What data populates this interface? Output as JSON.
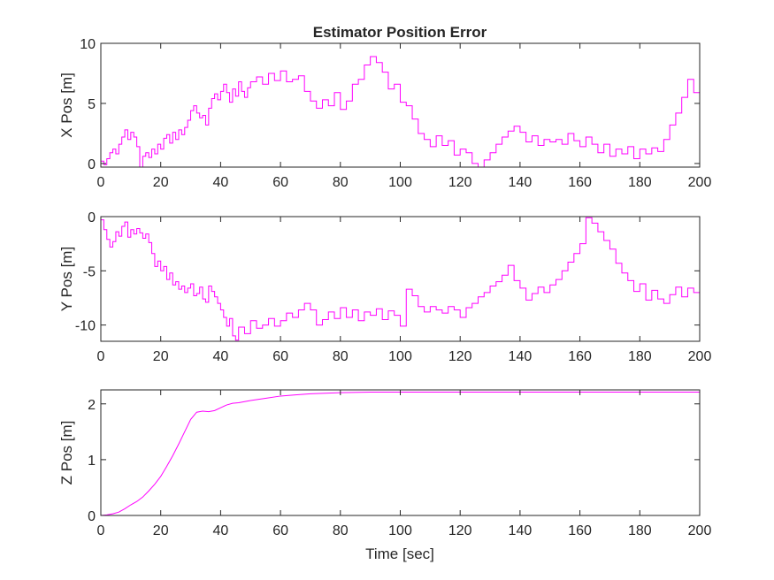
{
  "figure": {
    "title": "Estimator Position Error",
    "xlabel": "Time [sec]",
    "line_color": "#ff00ff"
  },
  "chart_data": [
    {
      "type": "line",
      "ylabel": "X Pos [m]",
      "xlim": [
        0,
        200
      ],
      "ylim": [
        -0.3,
        10
      ],
      "xticks": [
        0,
        20,
        40,
        60,
        80,
        100,
        120,
        140,
        160,
        180,
        200
      ],
      "yticks": [
        0,
        5,
        10
      ],
      "step": true,
      "series": [
        {
          "x": [
            0,
            1,
            2,
            3,
            4,
            5,
            6,
            7,
            8,
            9,
            10,
            11,
            12,
            13,
            14,
            15,
            16,
            17,
            18,
            19,
            20,
            21,
            22,
            23,
            24,
            25,
            26,
            27,
            28,
            29,
            30,
            31,
            32,
            33,
            34,
            35,
            36,
            37,
            38,
            39,
            40,
            41,
            42,
            43,
            44,
            45,
            46,
            47,
            48,
            49,
            50,
            52,
            54,
            56,
            58,
            60,
            62,
            64,
            66,
            68,
            70,
            72,
            74,
            76,
            78,
            80,
            82,
            84,
            86,
            88,
            90,
            92,
            94,
            96,
            98,
            100,
            102,
            104,
            106,
            108,
            110,
            112,
            114,
            116,
            118,
            120,
            122,
            124,
            126,
            128,
            130,
            132,
            134,
            136,
            138,
            140,
            142,
            144,
            146,
            148,
            150,
            152,
            154,
            156,
            158,
            160,
            162,
            164,
            166,
            168,
            170,
            172,
            174,
            176,
            178,
            180,
            182,
            184,
            186,
            188,
            190,
            192,
            194,
            196,
            198,
            200
          ],
          "y": [
            0.2,
            -0.1,
            0.4,
            0.9,
            1.2,
            0.8,
            1.6,
            2.2,
            2.8,
            2.0,
            2.6,
            2.2,
            1.4,
            -0.3,
            0.6,
            0.9,
            0.5,
            1.2,
            0.8,
            1.6,
            1.2,
            2.1,
            2.4,
            1.7,
            2.6,
            2.0,
            2.8,
            2.4,
            3.0,
            3.6,
            4.4,
            4.8,
            4.2,
            3.8,
            4.0,
            3.2,
            4.6,
            5.4,
            5.8,
            5.3,
            6.0,
            6.6,
            5.9,
            5.1,
            6.2,
            5.6,
            6.8,
            6.0,
            5.5,
            6.3,
            6.8,
            7.2,
            6.6,
            7.5,
            6.9,
            7.7,
            6.8,
            7.0,
            7.3,
            6.0,
            5.2,
            4.6,
            5.3,
            4.8,
            5.9,
            4.5,
            5.2,
            6.6,
            7.0,
            8.2,
            8.9,
            8.4,
            7.6,
            6.2,
            6.6,
            5.1,
            4.8,
            3.7,
            2.5,
            2.0,
            1.4,
            2.3,
            1.5,
            1.9,
            0.7,
            1.2,
            0.9,
            0.0,
            -0.3,
            0.3,
            0.9,
            1.6,
            2.2,
            2.7,
            3.1,
            2.6,
            1.8,
            2.3,
            1.5,
            2.0,
            1.8,
            2.0,
            1.6,
            2.5,
            1.9,
            1.4,
            2.2,
            1.6,
            0.9,
            1.6,
            0.6,
            1.2,
            0.8,
            1.4,
            0.4,
            1.2,
            0.8,
            1.3,
            1.0,
            2.0,
            3.2,
            4.2,
            5.5,
            7.0,
            5.9,
            4.4
          ]
        }
      ]
    },
    {
      "type": "line",
      "ylabel": "Y Pos [m]",
      "xlim": [
        0,
        200
      ],
      "ylim": [
        -11.5,
        0
      ],
      "xticks": [
        0,
        20,
        40,
        60,
        80,
        100,
        120,
        140,
        160,
        180,
        200
      ],
      "yticks": [
        -10,
        -5,
        0
      ],
      "step": true,
      "series": [
        {
          "x": [
            0,
            1,
            2,
            3,
            4,
            5,
            6,
            7,
            8,
            9,
            10,
            11,
            12,
            13,
            14,
            15,
            16,
            17,
            18,
            19,
            20,
            21,
            22,
            23,
            24,
            25,
            26,
            27,
            28,
            29,
            30,
            31,
            32,
            33,
            34,
            35,
            36,
            37,
            38,
            39,
            40,
            41,
            42,
            43,
            44,
            45,
            46,
            48,
            50,
            52,
            54,
            56,
            58,
            60,
            62,
            64,
            66,
            68,
            70,
            72,
            74,
            76,
            78,
            80,
            82,
            84,
            86,
            88,
            90,
            92,
            94,
            96,
            98,
            100,
            102,
            104,
            106,
            108,
            110,
            112,
            114,
            116,
            118,
            120,
            122,
            124,
            126,
            128,
            130,
            132,
            134,
            136,
            138,
            140,
            142,
            144,
            146,
            148,
            150,
            152,
            154,
            156,
            158,
            160,
            162,
            164,
            166,
            168,
            170,
            172,
            174,
            176,
            178,
            180,
            182,
            184,
            186,
            188,
            190,
            192,
            194,
            196,
            198,
            200
          ],
          "y": [
            -0.3,
            -1.2,
            -2.1,
            -2.8,
            -2.3,
            -1.4,
            -1.8,
            -0.9,
            -0.5,
            -1.9,
            -1.2,
            -1.6,
            -1.1,
            -1.5,
            -2.0,
            -1.6,
            -2.4,
            -3.4,
            -4.6,
            -4.1,
            -5.0,
            -4.6,
            -5.8,
            -5.2,
            -6.3,
            -6.0,
            -6.7,
            -6.4,
            -7.0,
            -6.6,
            -6.2,
            -7.3,
            -7.1,
            -6.5,
            -7.6,
            -7.9,
            -6.4,
            -6.9,
            -7.4,
            -8.0,
            -8.6,
            -9.3,
            -10.1,
            -9.4,
            -11.0,
            -11.4,
            -10.2,
            -10.8,
            -9.6,
            -10.3,
            -10.0,
            -9.4,
            -10.1,
            -9.6,
            -8.9,
            -9.3,
            -8.6,
            -8.0,
            -8.6,
            -10.0,
            -9.5,
            -8.8,
            -9.4,
            -8.4,
            -9.3,
            -8.6,
            -9.6,
            -8.8,
            -9.1,
            -8.5,
            -9.5,
            -8.7,
            -9.1,
            -10.1,
            -6.7,
            -7.3,
            -8.3,
            -8.8,
            -8.3,
            -8.6,
            -8.9,
            -8.3,
            -8.6,
            -9.3,
            -8.4,
            -8.0,
            -7.4,
            -7.0,
            -6.4,
            -6.0,
            -5.4,
            -4.5,
            -5.9,
            -6.6,
            -7.7,
            -7.1,
            -6.5,
            -7.0,
            -6.3,
            -5.8,
            -5.0,
            -4.2,
            -3.4,
            -2.5,
            -0.1,
            -0.6,
            -1.4,
            -2.2,
            -3.0,
            -4.3,
            -5.2,
            -5.9,
            -6.9,
            -6.2,
            -7.7,
            -6.8,
            -7.6,
            -8.0,
            -7.2,
            -6.5,
            -7.4,
            -6.6,
            -7.0,
            -6.6
          ]
        }
      ]
    },
    {
      "type": "line",
      "ylabel": "Z Pos [m]",
      "xlim": [
        0,
        200
      ],
      "ylim": [
        0,
        2.25
      ],
      "xticks": [
        0,
        20,
        40,
        60,
        80,
        100,
        120,
        140,
        160,
        180,
        200
      ],
      "yticks": [
        0,
        1,
        2
      ],
      "step": false,
      "series": [
        {
          "x": [
            0,
            2,
            4,
            6,
            8,
            10,
            12,
            14,
            16,
            18,
            20,
            22,
            24,
            26,
            28,
            30,
            32,
            34,
            36,
            38,
            40,
            42,
            44,
            46,
            48,
            50,
            55,
            60,
            65,
            70,
            75,
            80,
            90,
            100,
            120,
            140,
            160,
            180,
            200
          ],
          "y": [
            0.0,
            0.01,
            0.03,
            0.06,
            0.12,
            0.19,
            0.25,
            0.33,
            0.44,
            0.56,
            0.7,
            0.88,
            1.07,
            1.28,
            1.5,
            1.72,
            1.85,
            1.87,
            1.86,
            1.88,
            1.93,
            1.98,
            2.01,
            2.02,
            2.04,
            2.06,
            2.1,
            2.14,
            2.16,
            2.18,
            2.19,
            2.2,
            2.21,
            2.21,
            2.21,
            2.21,
            2.21,
            2.21,
            2.21
          ]
        }
      ]
    }
  ]
}
